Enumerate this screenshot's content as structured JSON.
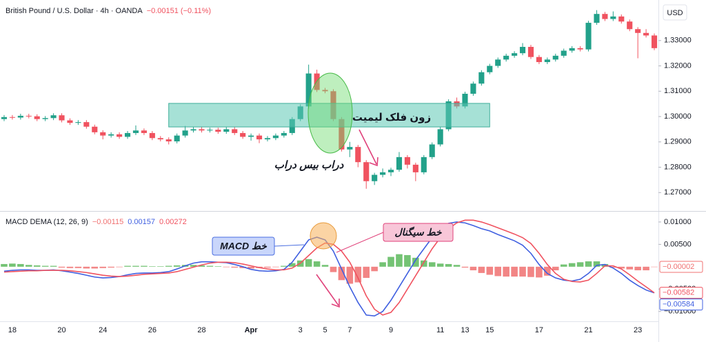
{
  "chart_data": [
    {
      "type": "candlestick",
      "title": "British Pound / U.S. Dollar · 4h · OANDA",
      "change": "−0.00151 (−0.11%)",
      "currency": "USD",
      "up_color": "#22a18a",
      "down_color": "#f0525f",
      "categories": [
        null,
        "18",
        null,
        null,
        null,
        null,
        null,
        "20",
        null,
        null,
        null,
        null,
        "24",
        null,
        null,
        null,
        null,
        null,
        "26",
        null,
        null,
        null,
        null,
        null,
        "28",
        null,
        null,
        null,
        null,
        null,
        "Apr",
        null,
        null,
        null,
        null,
        null,
        "3",
        null,
        null,
        "5",
        null,
        null,
        "7",
        null,
        null,
        null,
        null,
        "9",
        null,
        null,
        null,
        null,
        null,
        "11",
        null,
        null,
        "13",
        null,
        null,
        "15",
        null,
        null,
        null,
        null,
        null,
        "17",
        null,
        null,
        null,
        null,
        null,
        "21",
        null,
        null,
        null,
        null,
        null,
        "23",
        null,
        null
      ],
      "open": [
        1.299,
        1.2998,
        1.2996,
        1.3003,
        1.3001,
        1.299,
        1.2994,
        1.3005,
        1.2985,
        1.2975,
        1.2978,
        1.296,
        1.2938,
        1.2925,
        1.293,
        1.292,
        1.2935,
        1.2945,
        1.2935,
        1.2915,
        1.291,
        1.2902,
        1.2925,
        1.2945,
        1.295,
        1.2945,
        1.2948,
        1.294,
        1.295,
        1.2935,
        1.292,
        1.2925,
        1.291,
        1.2915,
        1.2925,
        1.2935,
        1.299,
        1.304,
        1.317,
        1.3105,
        1.31,
        1.299,
        1.287,
        1.288,
        1.282,
        1.2745,
        1.277,
        1.278,
        1.279,
        1.284,
        1.281,
        1.278,
        1.284,
        1.289,
        1.295,
        1.306,
        1.304,
        1.309,
        1.313,
        1.3175,
        1.32,
        1.3225,
        1.324,
        1.325,
        1.3275,
        1.3235,
        1.3215,
        1.3225,
        1.324,
        1.326,
        1.327,
        1.3265,
        1.337,
        1.3405,
        1.3385,
        1.3395,
        1.3375,
        1.3345,
        1.333,
        1.332
      ],
      "high": [
        1.3006,
        1.3006,
        1.3011,
        1.3011,
        1.3009,
        1.3002,
        1.3013,
        1.3013,
        1.2993,
        1.2986,
        1.2986,
        1.2968,
        1.2946,
        1.2938,
        1.2938,
        1.2943,
        1.2965,
        1.2953,
        1.2943,
        1.2923,
        1.2918,
        1.2933,
        1.2963,
        1.2958,
        1.2958,
        1.2956,
        1.2956,
        1.2958,
        1.2958,
        1.2943,
        1.2933,
        1.2933,
        1.2923,
        1.2933,
        1.2943,
        1.2998,
        1.3048,
        1.3205,
        1.3185,
        1.3113,
        1.3108,
        1.2998,
        1.29,
        1.2888,
        1.2828,
        1.2778,
        1.2795,
        1.2798,
        1.286,
        1.2848,
        1.2818,
        1.2848,
        1.2898,
        1.2958,
        1.3068,
        1.3075,
        1.3098,
        1.3138,
        1.3183,
        1.3208,
        1.3233,
        1.3248,
        1.3258,
        1.329,
        1.3283,
        1.3243,
        1.3233,
        1.3248,
        1.3268,
        1.3278,
        1.3278,
        1.3378,
        1.342,
        1.3413,
        1.3415,
        1.3403,
        1.3383,
        1.3353,
        1.3345,
        1.3328
      ],
      "low": [
        1.2982,
        1.2988,
        1.2988,
        1.2993,
        1.2982,
        1.2982,
        1.2986,
        1.2977,
        1.2967,
        1.2967,
        1.2952,
        1.293,
        1.291,
        1.2917,
        1.2912,
        1.2912,
        1.2927,
        1.2927,
        1.2907,
        1.2902,
        1.289,
        1.2894,
        1.2917,
        1.2937,
        1.2937,
        1.2937,
        1.2932,
        1.2932,
        1.2927,
        1.2912,
        1.2905,
        1.2895,
        1.2902,
        1.2907,
        1.2917,
        1.2927,
        1.2982,
        1.3032,
        1.3097,
        1.3092,
        1.2982,
        1.2862,
        1.284,
        1.28,
        1.2715,
        1.273,
        1.276,
        1.2765,
        1.2782,
        1.2795,
        1.2745,
        1.2772,
        1.2832,
        1.2882,
        1.2942,
        1.3032,
        1.3032,
        1.3082,
        1.3122,
        1.3167,
        1.3192,
        1.3217,
        1.3232,
        1.3242,
        1.3227,
        1.3207,
        1.3207,
        1.3217,
        1.3232,
        1.3252,
        1.3257,
        1.3257,
        1.3362,
        1.3377,
        1.3377,
        1.3367,
        1.3337,
        1.323,
        1.3312,
        1.3262
      ],
      "close": [
        1.2998,
        1.2996,
        1.3003,
        1.3001,
        1.299,
        1.2994,
        1.3005,
        1.2985,
        1.2975,
        1.2978,
        1.296,
        1.2938,
        1.2925,
        1.293,
        1.292,
        1.2935,
        1.2945,
        1.2935,
        1.2915,
        1.291,
        1.2902,
        1.2925,
        1.2945,
        1.295,
        1.2945,
        1.2948,
        1.294,
        1.295,
        1.2935,
        1.292,
        1.2925,
        1.291,
        1.2915,
        1.2925,
        1.2935,
        1.299,
        1.304,
        1.317,
        1.3105,
        1.31,
        1.299,
        1.287,
        1.288,
        1.282,
        1.2745,
        1.277,
        1.278,
        1.279,
        1.284,
        1.281,
        1.278,
        1.284,
        1.289,
        1.295,
        1.306,
        1.304,
        1.309,
        1.313,
        1.3175,
        1.32,
        1.3225,
        1.324,
        1.325,
        1.3275,
        1.3235,
        1.3215,
        1.3225,
        1.324,
        1.326,
        1.327,
        1.3265,
        1.337,
        1.3405,
        1.3385,
        1.3395,
        1.3375,
        1.3345,
        1.333,
        1.332,
        1.327
      ],
      "ylim": [
        1.263,
        1.346
      ],
      "yticks": [
        {
          "value": 1.27,
          "label": "1.27000"
        },
        {
          "value": 1.28,
          "label": "1.28000"
        },
        {
          "value": 1.29,
          "label": "1.29000"
        },
        {
          "value": 1.3,
          "label": "1.30000"
        },
        {
          "value": 1.31,
          "label": "1.31000"
        },
        {
          "value": 1.32,
          "label": "1.32000"
        },
        {
          "value": 1.33,
          "label": "1.33000"
        }
      ],
      "grid": false,
      "zone": {
        "x": [
          20,
          59
        ],
        "y": [
          1.2959,
          1.3052
        ],
        "color": "#5cc8b4"
      },
      "annotations": [
        "زون فلک لیمیت",
        "دراب بیس دراب"
      ]
    },
    {
      "type": "macd",
      "title": "MACD DEMA (12, 26, 9)",
      "series": [
        {
          "kind": "histogram",
          "color": "#f07070",
          "up_color": "#5cb85c",
          "header_label": "−0.00115",
          "last_label": "−0.00002",
          "values": [
            0.0006,
            0.0007,
            0.0006,
            0.0004,
            0.0003,
            0.0002,
            0.0002,
            -0.0002,
            -0.0003,
            -0.0003,
            -0.0004,
            -0.0004,
            -0.0003,
            -0.0002,
            -0.0001,
            0.0002,
            0.0002,
            0.0002,
            0.0001,
            0.0001,
            0.0002,
            0.0003,
            0.0004,
            0.0004,
            0.0003,
            0.0002,
            0.0001,
            -0.0001,
            -0.0002,
            -0.0003,
            -0.0004,
            -0.0003,
            -0.0002,
            -0.0001,
            0.0002,
            0.0008,
            0.0014,
            0.0017,
            0.0012,
            0.0004,
            -0.0012,
            -0.003,
            -0.0038,
            -0.0035,
            -0.0025,
            -0.001,
            0.001,
            0.0022,
            0.0028,
            0.0026,
            0.002,
            0.0014,
            0.001,
            0.0007,
            0.0006,
            0.0004,
            -0.0002,
            -0.0008,
            -0.0014,
            -0.0018,
            -0.0021,
            -0.0022,
            -0.0022,
            -0.0022,
            -0.0023,
            -0.0024,
            -0.002,
            -0.0008,
            0.0005,
            0.0008,
            0.001,
            0.0012,
            0.0012,
            0.0006,
            -0.0002,
            -0.0004,
            -0.0006,
            -0.0008,
            -0.0008,
            -2e-05
          ]
        },
        {
          "kind": "line",
          "color": "#3f5fe0",
          "header_label": "0.00157",
          "last_label": "−0.00584",
          "values": [
            -0.001,
            -0.0008,
            -0.0007,
            -0.0007,
            -0.0008,
            -0.0008,
            -0.0007,
            -0.0009,
            -0.0012,
            -0.0015,
            -0.0019,
            -0.0023,
            -0.0025,
            -0.0024,
            -0.0022,
            -0.0018,
            -0.0015,
            -0.0014,
            -0.0014,
            -0.0013,
            -0.0011,
            -0.0005,
            0.0002,
            0.0008,
            0.0011,
            0.0011,
            0.001,
            0.0009,
            0.0005,
            0.0,
            -0.0006,
            -0.0009,
            -0.001,
            -0.0009,
            -0.0006,
            0.001,
            0.0035,
            0.006,
            0.0066,
            0.006,
            0.0035,
            -0.0005,
            -0.0045,
            -0.008,
            -0.0108,
            -0.011,
            -0.01,
            -0.0075,
            -0.0045,
            -0.0015,
            0.0015,
            0.004,
            0.0065,
            0.0085,
            0.0097,
            0.01,
            0.0098,
            0.0092,
            0.0085,
            0.008,
            0.0072,
            0.0065,
            0.0058,
            0.0048,
            0.003,
            0.0005,
            -0.0015,
            -0.0025,
            -0.003,
            -0.0032,
            -0.0028,
            -0.0015,
            0.0003,
            0.0005,
            -0.0003,
            -0.0015,
            -0.003,
            -0.0042,
            -0.0052,
            -0.00584
          ]
        },
        {
          "kind": "line",
          "color": "#f0525f",
          "header_label": "0.00272",
          "last_label": "−0.00582",
          "values": [
            -0.0012,
            -0.0011,
            -0.001,
            -0.0009,
            -0.0009,
            -0.0008,
            -0.0008,
            -0.0008,
            -0.0009,
            -0.0011,
            -0.0013,
            -0.0016,
            -0.0019,
            -0.0021,
            -0.0022,
            -0.0021,
            -0.0019,
            -0.0017,
            -0.0016,
            -0.0015,
            -0.0014,
            -0.0011,
            -0.0006,
            -0.0001,
            0.0004,
            0.0008,
            0.001,
            0.001,
            0.0009,
            0.0006,
            0.0002,
            -0.0002,
            -0.0005,
            -0.0007,
            -0.0007,
            -0.0003,
            0.0008,
            0.0025,
            0.0042,
            0.0053,
            0.005,
            0.0035,
            0.001,
            -0.0025,
            -0.0065,
            -0.0095,
            -0.0108,
            -0.0102,
            -0.008,
            -0.005,
            -0.002,
            0.001,
            0.004,
            0.0065,
            0.0085,
            0.0098,
            0.0104,
            0.0104,
            0.01,
            0.0094,
            0.0087,
            0.008,
            0.0073,
            0.0065,
            0.0052,
            0.003,
            0.0005,
            -0.0015,
            -0.0028,
            -0.0033,
            -0.0034,
            -0.003,
            -0.0015,
            0.0002,
            0.0002,
            -0.0005,
            -0.0018,
            -0.0032,
            -0.0045,
            -0.00582
          ]
        }
      ],
      "ylim": [
        -0.0122,
        0.0123
      ],
      "yticks": [
        {
          "value": 0.01,
          "label": "0.01000"
        },
        {
          "value": 0.005,
          "label": "0.00500"
        },
        {
          "value": -0.005,
          "label": "−0.00500"
        },
        {
          "value": -0.01,
          "label": "−0.01000"
        }
      ],
      "annotations": [
        "خط MACD",
        "خط سیگنال"
      ]
    }
  ]
}
